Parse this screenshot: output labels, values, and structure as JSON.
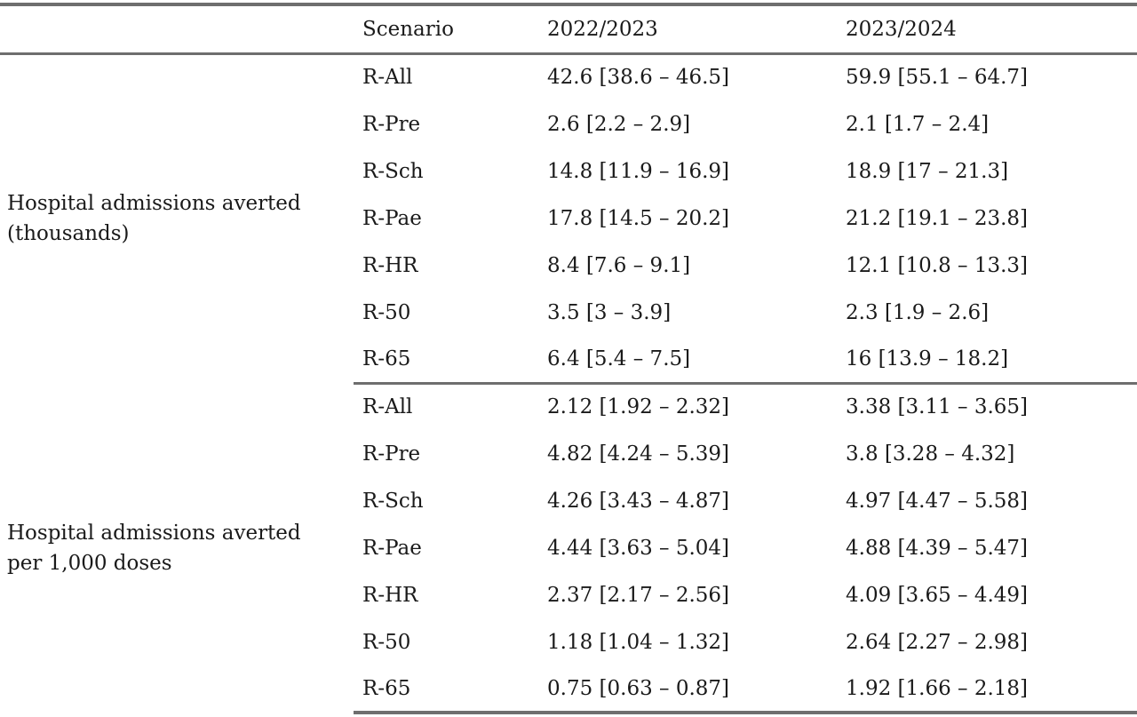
{
  "header": {
    "metric": "",
    "scenario": "Scenario",
    "season1": "2022/2023",
    "season2": "2023/2024"
  },
  "groups": [
    {
      "metric_line1": "Hospital admissions averted",
      "metric_line2": "(thousands)",
      "rows": [
        {
          "scenario": "R-All",
          "season1": "42.6 [38.6 – 46.5]",
          "season2": "59.9 [55.1 – 64.7]"
        },
        {
          "scenario": "R-Pre",
          "season1": "2.6 [2.2 – 2.9]",
          "season2": "2.1 [1.7 – 2.4]"
        },
        {
          "scenario": "R-Sch",
          "season1": "14.8 [11.9 – 16.9]",
          "season2": "18.9 [17 – 21.3]"
        },
        {
          "scenario": "R-Pae",
          "season1": "17.8 [14.5 – 20.2]",
          "season2": "21.2 [19.1 – 23.8]"
        },
        {
          "scenario": "R-HR",
          "season1": "8.4 [7.6 – 9.1]",
          "season2": "12.1 [10.8 – 13.3]"
        },
        {
          "scenario": "R-50",
          "season1": "3.5 [3 – 3.9]",
          "season2": "2.3 [1.9 – 2.6]"
        },
        {
          "scenario": "R-65",
          "season1": "6.4 [5.4 – 7.5]",
          "season2": "16 [13.9 – 18.2]"
        }
      ]
    },
    {
      "metric_line1": "Hospital admissions averted",
      "metric_line2": "per 1,000 doses",
      "rows": [
        {
          "scenario": "R-All",
          "season1": "2.12 [1.92 – 2.32]",
          "season2": "3.38 [3.11 – 3.65]"
        },
        {
          "scenario": "R-Pre",
          "season1": "4.82 [4.24 – 5.39]",
          "season2": "3.8 [3.28 – 4.32]"
        },
        {
          "scenario": "R-Sch",
          "season1": "4.26 [3.43 – 4.87]",
          "season2": "4.97 [4.47 – 5.58]"
        },
        {
          "scenario": "R-Pae",
          "season1": "4.44 [3.63 – 5.04]",
          "season2": "4.88 [4.39 – 5.47]"
        },
        {
          "scenario": "R-HR",
          "season1": "2.37 [2.17 – 2.56]",
          "season2": "4.09 [3.65 – 4.49]"
        },
        {
          "scenario": "R-50",
          "season1": "1.18 [1.04 – 1.32]",
          "season2": "2.64 [2.27 – 2.98]"
        },
        {
          "scenario": "R-65",
          "season1": "0.75 [0.63 – 0.87]",
          "season2": "1.92 [1.66 – 2.18]"
        }
      ]
    }
  ]
}
